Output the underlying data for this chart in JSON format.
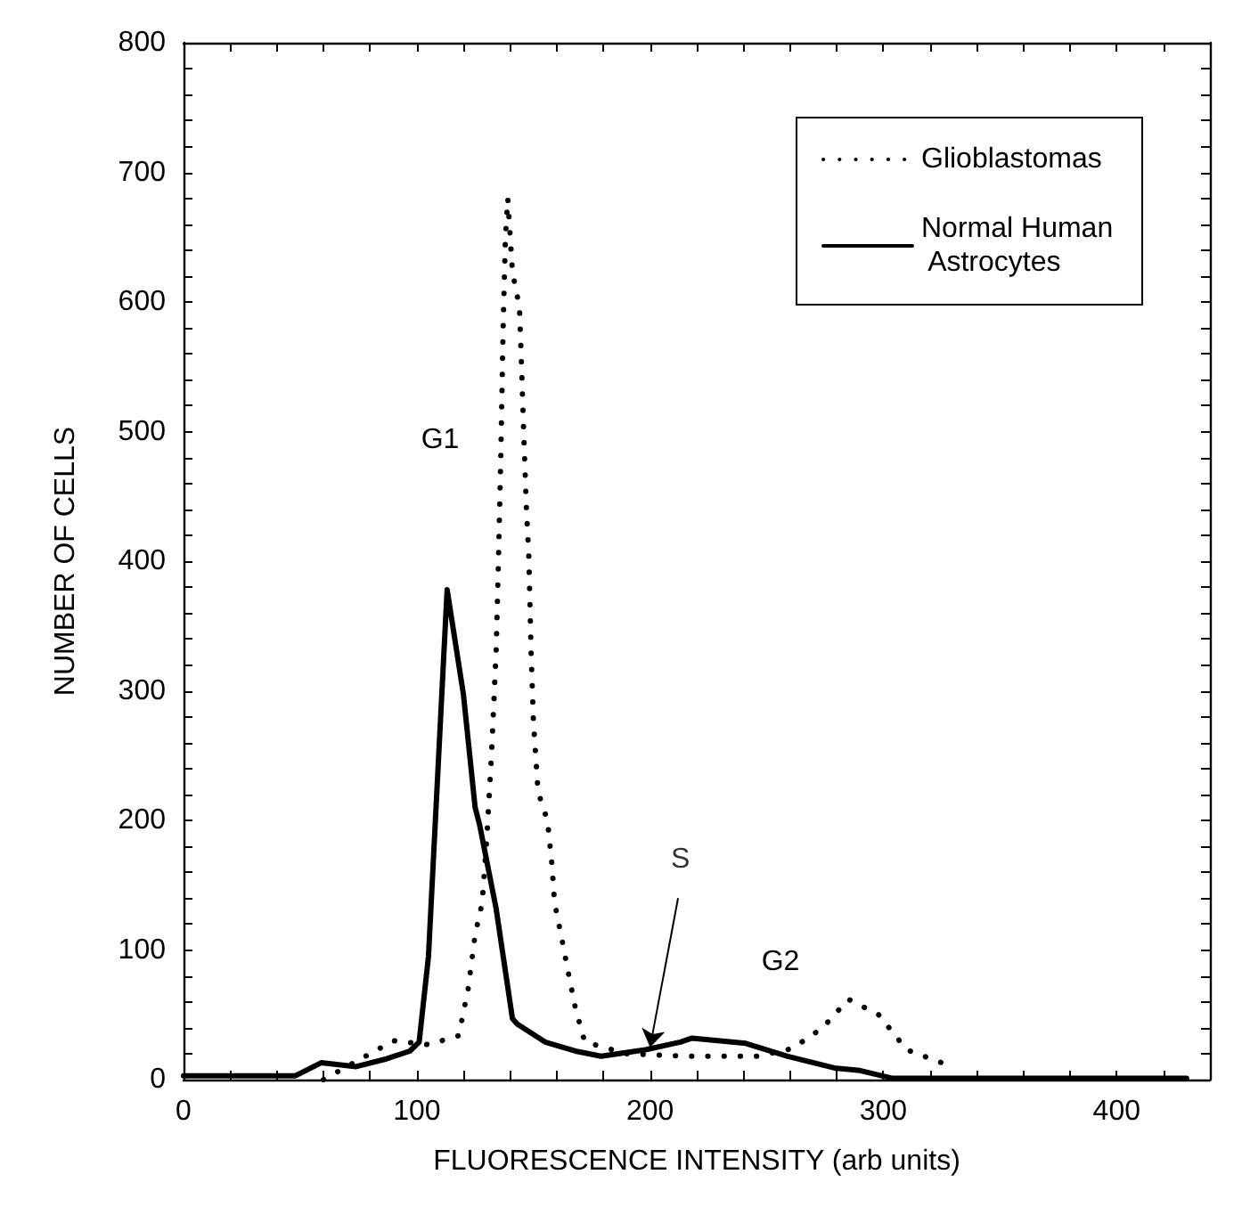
{
  "chart_data": {
    "type": "line",
    "xlabel": "FLUORESCENCE INTENSITY (arb units)",
    "ylabel": "NUMBER OF CELLS",
    "xlim": [
      0,
      440
    ],
    "ylim": [
      0,
      800
    ],
    "xticks": [
      0,
      {
        "value": 20,
        "label": null
      },
      {
        "value": 40,
        "label": null
      },
      {
        "value": 60,
        "label": null
      },
      {
        "value": 80,
        "label": null
      },
      100,
      {
        "value": 120,
        "label": null
      },
      {
        "value": 140,
        "label": null
      },
      {
        "value": 160,
        "label": null
      },
      {
        "value": 180,
        "label": null
      },
      200,
      {
        "value": 220,
        "label": null
      },
      {
        "value": 240,
        "label": null
      },
      {
        "value": 260,
        "label": null
      },
      {
        "value": 280,
        "label": null
      },
      300,
      {
        "value": 320,
        "label": null
      },
      {
        "value": 340,
        "label": null
      },
      {
        "value": 360,
        "label": null
      },
      {
        "value": 380,
        "label": null
      },
      400,
      {
        "value": 420,
        "label": null
      },
      {
        "value": 440,
        "label": null
      }
    ],
    "yticks": [
      0,
      {
        "value": 20,
        "label": null
      },
      {
        "value": 40,
        "label": null
      },
      {
        "value": 60,
        "label": null
      },
      {
        "value": 80,
        "label": null
      },
      100,
      {
        "value": 120,
        "label": null
      },
      {
        "value": 140,
        "label": null
      },
      {
        "value": 160,
        "label": null
      },
      {
        "value": 180,
        "label": null
      },
      200,
      {
        "value": 220,
        "label": null
      },
      {
        "value": 240,
        "label": null
      },
      {
        "value": 260,
        "label": null
      },
      {
        "value": 280,
        "label": null
      },
      300,
      {
        "value": 320,
        "label": null
      },
      {
        "value": 340,
        "label": null
      },
      {
        "value": 360,
        "label": null
      },
      {
        "value": 380,
        "label": null
      },
      400,
      {
        "value": 420,
        "label": null
      },
      {
        "value": 440,
        "label": null
      },
      {
        "value": 460,
        "label": null
      },
      {
        "value": 480,
        "label": null
      },
      500,
      {
        "value": 520,
        "label": null
      },
      {
        "value": 540,
        "label": null
      },
      {
        "value": 560,
        "label": null
      },
      {
        "value": 580,
        "label": null
      },
      600,
      {
        "value": 620,
        "label": null
      },
      {
        "value": 640,
        "label": null
      },
      {
        "value": 660,
        "label": null
      },
      {
        "value": 680,
        "label": null
      },
      700,
      {
        "value": 720,
        "label": null
      },
      {
        "value": 740,
        "label": null
      },
      {
        "value": 760,
        "label": null
      },
      {
        "value": 780,
        "label": null
      },
      800
    ],
    "grid": false,
    "legend": "top right",
    "marker": "none",
    "series": [
      {
        "name": "Glioblastomas",
        "color": "#000000",
        "line_style": "dotted",
        "x": [
          60,
          90,
          105,
          118,
          122,
          125,
          128,
          130,
          132,
          134,
          135,
          136,
          137,
          138,
          139,
          141,
          144,
          145,
          146,
          147,
          148,
          149,
          150,
          152,
          156,
          158,
          159,
          162,
          165,
          168,
          172,
          190,
          216,
          246,
          261,
          274,
          285,
          298,
          310,
          325
        ],
        "values": [
          0,
          30,
          27,
          34,
          70,
          112,
          136,
          186,
          250,
          330,
          400,
          480,
          580,
          650,
          680,
          623,
          596,
          545,
          490,
          440,
          405,
          330,
          276,
          222,
          200,
          165,
          137,
          110,
          82,
          55,
          29,
          20,
          18,
          18,
          24,
          40,
          62,
          50,
          23,
          13
        ]
      },
      {
        "name": "Normal Human Astrocytes",
        "color": "#000000",
        "line_style": "solid",
        "x": [
          0,
          48,
          59,
          74,
          87,
          97,
          101,
          105,
          113,
          120,
          125,
          127,
          134,
          141,
          143,
          155,
          168,
          179,
          198,
          213,
          218,
          241,
          259,
          279,
          290,
          304,
          430
        ],
        "values": [
          3,
          3,
          13,
          10,
          16,
          22,
          29,
          95,
          378,
          297,
          210,
          196,
          132,
          47,
          43,
          29,
          22,
          18,
          23,
          29,
          32,
          28,
          18,
          9,
          7,
          1,
          1
        ]
      }
    ],
    "annotations": [
      "G1",
      {
        "text": "S",
        "x": 200,
        "y": 25
      },
      "G2"
    ]
  }
}
